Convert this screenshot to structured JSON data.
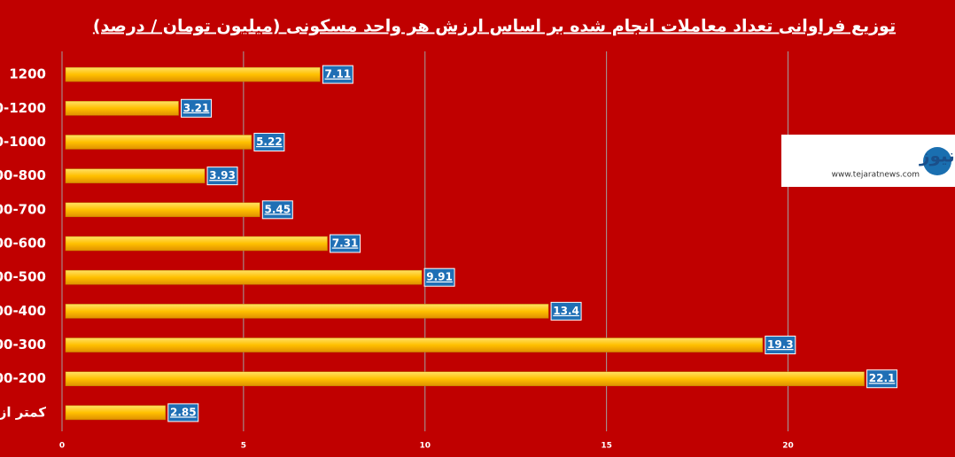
{
  "chart_data": {
    "type": "hbar",
    "title": "توزیع فراوانی تعداد معاملات انجام شده بر اساس ارزش هر واحد مسکونی (میلیون تومان / درصد)",
    "categories": [
      "1200",
      "0-1200",
      "0-1000",
      "00-800",
      "00-700",
      "00-600",
      "00-500",
      "00-400",
      "00-300",
      "00-200",
      "کمتر از"
    ],
    "values": [
      7.11,
      3.21,
      5.22,
      3.93,
      5.45,
      7.31,
      9.91,
      13.4,
      19.3,
      22.1,
      2.85
    ],
    "color": "#ffc000",
    "xlim": [
      0,
      24.6
    ],
    "xticks": [
      0,
      5,
      10,
      15,
      20
    ],
    "grid": true
  },
  "logo": {
    "name": "تجارت نیوز",
    "url": "www.tejaratnews.com"
  }
}
